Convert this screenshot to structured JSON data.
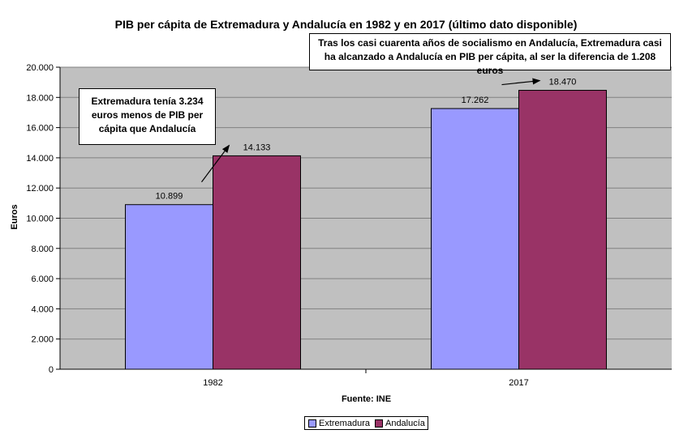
{
  "chart_data": {
    "type": "bar",
    "title": "PIB per cápita de Extremadura y Andalucía en 1982 y en 2017 (último dato disponible)",
    "categories": [
      "1982",
      "2017"
    ],
    "series": [
      {
        "name": "Extremadura",
        "values": [
          10899,
          17262
        ],
        "labels": [
          "10.899",
          "17.262"
        ],
        "color": "#9999FF"
      },
      {
        "name": "Andalucía",
        "values": [
          14133,
          18470
        ],
        "labels": [
          "14.133",
          "18.470"
        ],
        "color": "#993366"
      }
    ],
    "ylabel": "Euros",
    "xlabel": "Fuente: INE",
    "ylim": [
      0,
      20000
    ],
    "yticks": [
      {
        "value": 0,
        "label": "0"
      },
      {
        "value": 2000,
        "label": "2.000"
      },
      {
        "value": 4000,
        "label": "4.000"
      },
      {
        "value": 6000,
        "label": "6.000"
      },
      {
        "value": 8000,
        "label": "8.000"
      },
      {
        "value": 10000,
        "label": "10.000"
      },
      {
        "value": 12000,
        "label": "12.000"
      },
      {
        "value": 14000,
        "label": "14.000"
      },
      {
        "value": 16000,
        "label": "16.000"
      },
      {
        "value": 18000,
        "label": "18.000"
      },
      {
        "value": 20000,
        "label": "20.000"
      }
    ],
    "grid": true,
    "plot_background": "#C0C0C0",
    "legend": "bottom-center",
    "annotations": [
      {
        "text": "Extremadura tenía 3.234 euros menos de PIB per cápita que Andalucía"
      },
      {
        "text": "Tras los casi cuarenta años de socialismo en Andalucía, Extremadura casi ha alcanzado a Andalucía en PIB per cápita, al ser la diferencia de 1.208 euros"
      }
    ]
  }
}
